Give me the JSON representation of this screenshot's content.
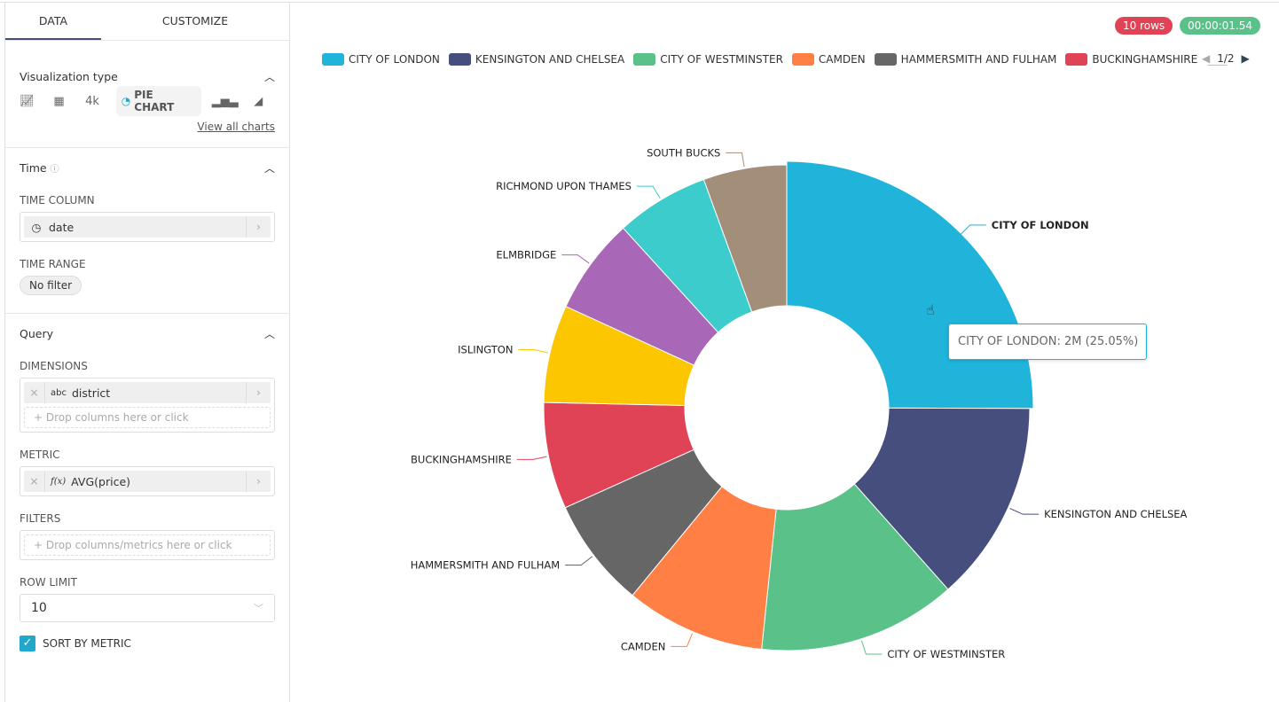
{
  "tabs": {
    "data": "DATA",
    "customize": "CUSTOMIZE"
  },
  "viz": {
    "title": "Visualization type",
    "four_k": "4k",
    "pie_chart": "PIE CHART",
    "view_all": "View all charts",
    "icons": [
      "line-chart-icon",
      "table-icon",
      "big-number-icon",
      "pie-chart-icon",
      "bar-chart-icon",
      "area-chart-icon"
    ]
  },
  "time": {
    "title": "Time",
    "time_column_label": "TIME COLUMN",
    "time_column_value": "date",
    "time_range_label": "TIME RANGE",
    "time_range_value": "No filter"
  },
  "query": {
    "title": "Query",
    "dimensions_label": "DIMENSIONS",
    "dimension_type": "abc",
    "dimension_value": "district",
    "dimensions_placeholder": "Drop columns here or click",
    "metric_label": "METRIC",
    "metric_type": "f(x)",
    "metric_value": "AVG(price)",
    "filters_label": "FILTERS",
    "filters_placeholder": "Drop columns/metrics here or click",
    "row_limit_label": "ROW LIMIT",
    "row_limit_value": "10",
    "sort_by_metric_label": "SORT BY METRIC",
    "sort_by_metric_checked": true
  },
  "status": {
    "rows": "10 rows",
    "rows_color": "#e04355",
    "time": "00:00:01.54",
    "time_color": "#5ac189"
  },
  "legend": {
    "page": "1/2"
  },
  "tooltip": "CITY OF LONDON: 2M (25.05%)",
  "chart_data": {
    "type": "pie",
    "donut": true,
    "unit": "percent (estimated)",
    "categories": [
      "CITY OF LONDON",
      "KENSINGTON AND CHELSEA",
      "CITY OF WESTMINSTER",
      "CAMDEN",
      "HAMMERSMITH AND FULHAM",
      "BUCKINGHAMSHIRE",
      "ISLINGTON",
      "ELMBRIDGE",
      "RICHMOND UPON THAMES",
      "SOUTH BUCKS"
    ],
    "values": [
      25.05,
      13.4,
      13.2,
      9.3,
      7.3,
      7.1,
      6.5,
      6.4,
      6.2,
      5.55
    ],
    "colors": [
      "#20b4db",
      "#454e7c",
      "#5ac189",
      "#ff7f44",
      "#666666",
      "#e04355",
      "#fcc700",
      "#a868b7",
      "#3ccccb",
      "#a38f79"
    ],
    "legend_visible_count": 7,
    "legend_position": "top",
    "highlighted": "CITY OF LONDON"
  }
}
